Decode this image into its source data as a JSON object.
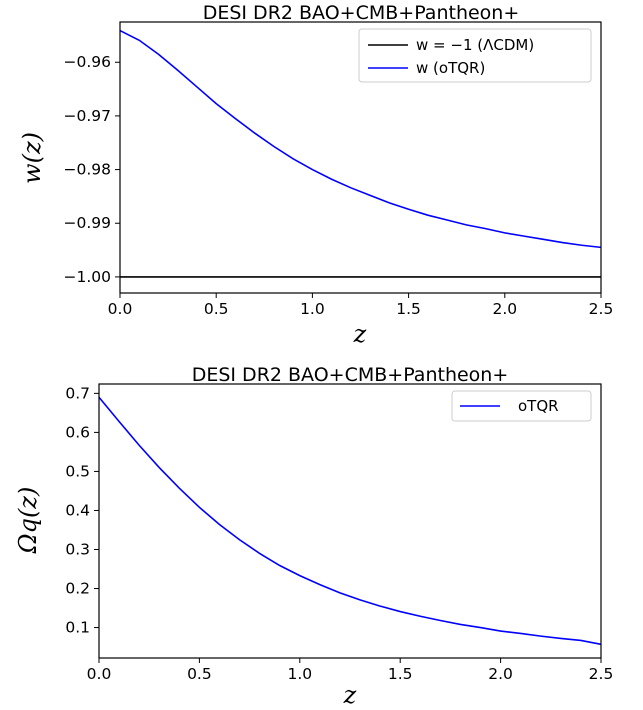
{
  "chart_data": [
    {
      "type": "line",
      "title": "DESI DR2 BAO+CMB+Pantheon+",
      "xlabel": "z",
      "ylabel": "w(z)",
      "xlim": [
        0.0,
        2.5
      ],
      "ylim": [
        -1.003,
        -0.9525
      ],
      "x_ticks": [
        "0.0",
        "0.5",
        "1.0",
        "1.5",
        "2.0",
        "2.5"
      ],
      "y_ticks": [
        "−0.96",
        "−0.97",
        "−0.98",
        "−0.99",
        "−1.00"
      ],
      "legend": "top-right",
      "series": [
        {
          "name": "w = −1 (ΛCDM)",
          "color": "#000000",
          "x": [
            0.0,
            2.5
          ],
          "y": [
            -1.0,
            -1.0
          ]
        },
        {
          "name": "w (oTQR)",
          "color": "#0000ff",
          "x": [
            0.0,
            0.1,
            0.2,
            0.3,
            0.4,
            0.5,
            0.6,
            0.7,
            0.8,
            0.9,
            1.0,
            1.1,
            1.2,
            1.3,
            1.4,
            1.5,
            1.6,
            1.7,
            1.8,
            1.9,
            2.0,
            2.1,
            2.2,
            2.3,
            2.4,
            2.5
          ],
          "y": [
            -0.9541,
            -0.9559,
            -0.9585,
            -0.9615,
            -0.9646,
            -0.9677,
            -0.9705,
            -0.9732,
            -0.9757,
            -0.978,
            -0.98,
            -0.9818,
            -0.9834,
            -0.9848,
            -0.9862,
            -0.9874,
            -0.9885,
            -0.9894,
            -0.9903,
            -0.991,
            -0.9918,
            -0.9924,
            -0.993,
            -0.9936,
            -0.9941,
            -0.9945
          ]
        }
      ]
    },
    {
      "type": "line",
      "title": "DESI DR2 BAO+CMB+Pantheon+",
      "xlabel": "z",
      "ylabel": "Ωq(z)",
      "xlim": [
        0.0,
        2.5
      ],
      "ylim": [
        0.022,
        0.724
      ],
      "x_ticks": [
        "0.0",
        "0.5",
        "1.0",
        "1.5",
        "2.0",
        "2.5"
      ],
      "y_ticks": [
        "0.7",
        "0.6",
        "0.5",
        "0.4",
        "0.3",
        "0.2",
        "0.1"
      ],
      "legend": "top-right",
      "series": [
        {
          "name": "oTQR",
          "color": "#0000ff",
          "x": [
            0.0,
            0.1,
            0.2,
            0.3,
            0.4,
            0.5,
            0.6,
            0.7,
            0.8,
            0.9,
            1.0,
            1.1,
            1.2,
            1.3,
            1.4,
            1.5,
            1.6,
            1.7,
            1.8,
            1.9,
            2.0,
            2.1,
            2.2,
            2.3,
            2.4,
            2.5
          ],
          "y": [
            0.69,
            0.628,
            0.567,
            0.51,
            0.457,
            0.408,
            0.364,
            0.325,
            0.29,
            0.259,
            0.233,
            0.21,
            0.189,
            0.171,
            0.155,
            0.141,
            0.129,
            0.118,
            0.108,
            0.1,
            0.091,
            0.085,
            0.078,
            0.072,
            0.067,
            0.057
          ]
        }
      ]
    }
  ]
}
